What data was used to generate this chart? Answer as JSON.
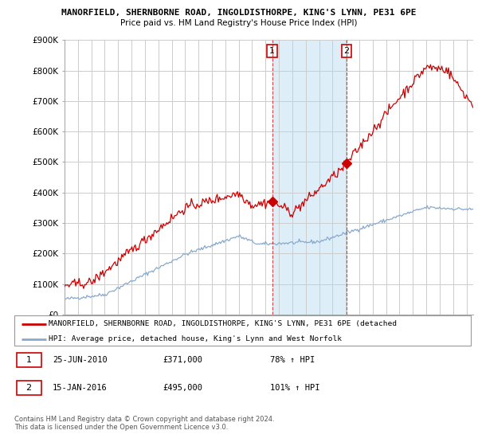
{
  "title1": "MANORFIELD, SHERNBORNE ROAD, INGOLDISTHORPE, KING'S LYNN, PE31 6PE",
  "title2": "Price paid vs. HM Land Registry's House Price Index (HPI)",
  "background_color": "#ffffff",
  "plot_bg_color": "#ffffff",
  "grid_color": "#cccccc",
  "red_line_color": "#cc0000",
  "blue_line_color": "#88aacc",
  "shaded_color": "#ddeef8",
  "ylim": [
    0,
    900000
  ],
  "yticks": [
    0,
    100000,
    200000,
    300000,
    400000,
    500000,
    600000,
    700000,
    800000,
    900000
  ],
  "ytick_labels": [
    "£0",
    "£100K",
    "£200K",
    "£300K",
    "£400K",
    "£500K",
    "£600K",
    "£700K",
    "£800K",
    "£900K"
  ],
  "sale1_date_x": 2010.5,
  "sale1_y": 371000,
  "sale1_label": "1",
  "sale1_date_text": "25-JUN-2010",
  "sale1_price_text": "£371,000",
  "sale1_hpi_text": "78% ↑ HPI",
  "sale2_date_x": 2016.04,
  "sale2_y": 495000,
  "sale2_label": "2",
  "sale2_date_text": "15-JAN-2016",
  "sale2_price_text": "£495,000",
  "sale2_hpi_text": "101% ↑ HPI",
  "legend_red_text": "MANORFIELD, SHERNBORNE ROAD, INGOLDISTHORPE, KING'S LYNN, PE31 6PE (detached",
  "legend_blue_text": "HPI: Average price, detached house, King's Lynn and West Norfolk",
  "footnote": "Contains HM Land Registry data © Crown copyright and database right 2024.\nThis data is licensed under the Open Government Licence v3.0.",
  "xmin": 1995,
  "xmax": 2025.5
}
